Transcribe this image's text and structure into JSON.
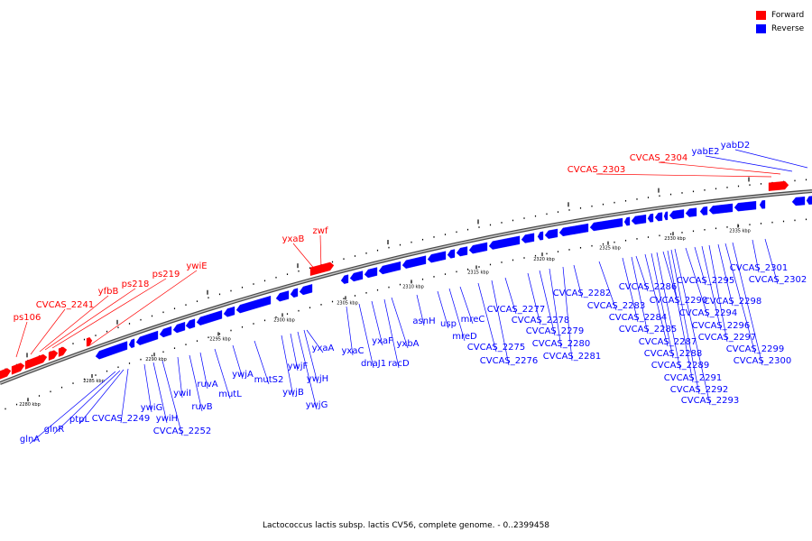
{
  "caption": "Lactococcus lactis subsp. lactis CV56, complete genome. - 0..2399458",
  "legend": [
    {
      "label": "Forward",
      "color": "#ff0000"
    },
    {
      "label": "Reverse",
      "color": "#0000ff"
    }
  ],
  "colors": {
    "forward": "#ff0000",
    "reverse": "#0000ff",
    "axis": "#888888",
    "leader": "#000000"
  },
  "ticks": [
    "2280 kbp",
    "2285 kbp",
    "2290 kbp",
    "2295 kbp",
    "2300 kbp",
    "2305 kbp",
    "2310 kbp",
    "2315 kbp",
    "2320 kbp",
    "2325 kbp",
    "2330 kbp",
    "2335 kbp"
  ],
  "forward_genes": [
    "ps106",
    "CVCAS_2241",
    "yfbB",
    "ps218",
    "ps219",
    "ywiE",
    "yxaB",
    "zwf",
    "CVCAS_2303",
    "CVCAS_2304"
  ],
  "reverse_genes": [
    "glnA",
    "glnR",
    "ptpL",
    "CVCAS_2249",
    "ywiG",
    "ywiH",
    "CVCAS_2252",
    "ywiI",
    "ruvB",
    "ruvA",
    "mutL",
    "ywjA",
    "mutS2",
    "ywjB",
    "ywjF",
    "ywjG",
    "ywjH",
    "yxaA",
    "yxaC",
    "dnaJ1",
    "yxaF",
    "racD",
    "yxbA",
    "asnH",
    "usp",
    "mreD",
    "mreC",
    "CVCAS_2275",
    "CVCAS_2276",
    "CVCAS_2277",
    "CVCAS_2278",
    "CVCAS_2279",
    "CVCAS_2280",
    "CVCAS_2281",
    "CVCAS_2282",
    "CVCAS_2283",
    "CVCAS_2284",
    "CVCAS_2285",
    "CVCAS_2286",
    "CVCAS_2287",
    "CVCAS_2288",
    "CVCAS_2289",
    "CVCAS_2290",
    "CVCAS_2291",
    "CVCAS_2292",
    "CVCAS_2293",
    "CVCAS_2294",
    "CVCAS_2295",
    "CVCAS_2296",
    "CVCAS_2297",
    "CVCAS_2298",
    "CVCAS_2299",
    "CVCAS_2300",
    "CVCAS_2301",
    "CVCAS_2302",
    "yabE2",
    "yabD2"
  ]
}
